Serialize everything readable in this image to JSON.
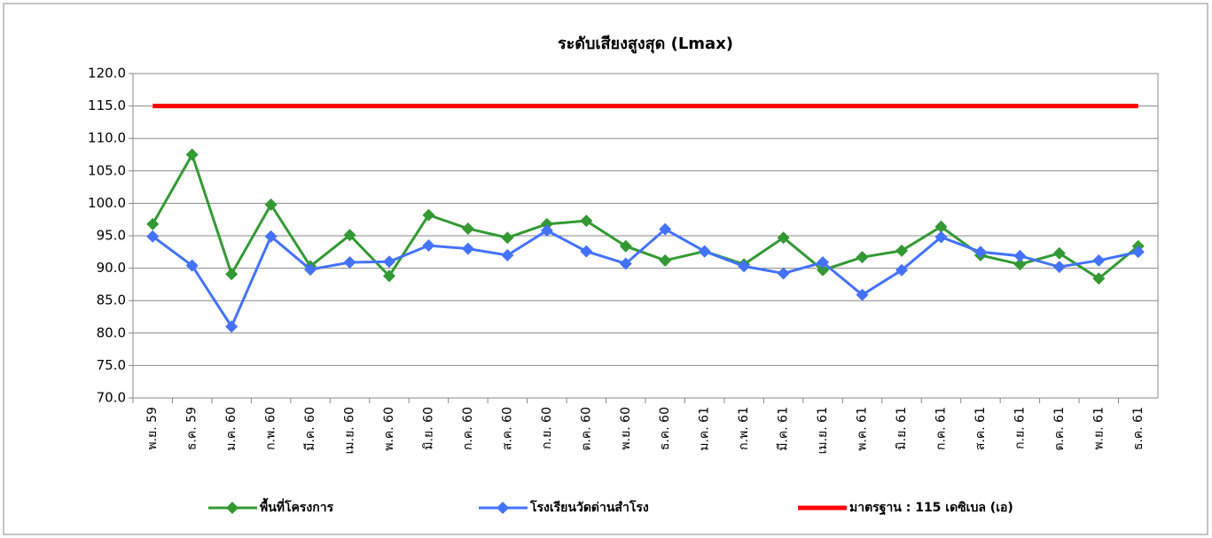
{
  "chart_data": {
    "type": "line",
    "title": "ระดับเสียงสูงสุด (Lmax)",
    "categories": [
      "พ.ย. 59",
      "ธ.ค. 59",
      "ม.ค. 60",
      "ก.พ. 60",
      "มี.ค. 60",
      "เม.ย. 60",
      "พ.ค. 60",
      "มิ.ย. 60",
      "ก.ค. 60",
      "ส.ค. 60",
      "ก.ย. 60",
      "ต.ค. 60",
      "พ.ย. 60",
      "ธ.ค. 60",
      "ม.ค. 61",
      "ก.พ. 61",
      "มี.ค. 61",
      "เม.ย. 61",
      "พ.ค. 61",
      "มิ.ย. 61",
      "ก.ค. 61",
      "ส.ค. 61",
      "ก.ย. 61",
      "ต.ค. 61",
      "พ.ย. 61",
      "ธ.ค. 61"
    ],
    "series": [
      {
        "name": "พื้นที่โครงการ",
        "color": "#339933",
        "marker": "diamond",
        "values": [
          96.8,
          107.5,
          89.1,
          99.8,
          90.3,
          95.1,
          88.8,
          98.2,
          96.1,
          94.7,
          96.8,
          97.3,
          93.4,
          91.2,
          92.6,
          90.6,
          94.7,
          89.7,
          91.7,
          92.7,
          96.4,
          92.0,
          90.6,
          92.3,
          88.4,
          93.4
        ]
      },
      {
        "name": "โรงเรียนวัดด่านสำโรง",
        "color": "#4472ff",
        "marker": "diamond",
        "values": [
          94.9,
          90.4,
          81.0,
          94.9,
          89.8,
          90.9,
          91.0,
          93.5,
          93.0,
          92.0,
          95.8,
          92.6,
          90.7,
          96.0,
          92.6,
          90.3,
          89.2,
          90.9,
          85.9,
          89.7,
          94.8,
          92.5,
          91.9,
          90.2,
          91.2,
          92.5
        ]
      },
      {
        "name": "มาตรฐาน : 115 เดซิเบล (เอ)",
        "color": "#ff0000",
        "values": [
          115,
          115,
          115,
          115,
          115,
          115,
          115,
          115,
          115,
          115,
          115,
          115,
          115,
          115,
          115,
          115,
          115,
          115,
          115,
          115,
          115,
          115,
          115,
          115,
          115,
          115
        ]
      }
    ],
    "ylim": [
      70,
      120
    ],
    "yticks": [
      {
        "value": 70,
        "label": "70.0"
      },
      {
        "value": 75,
        "label": "75.0"
      },
      {
        "value": 80,
        "label": "80.0"
      },
      {
        "value": 85,
        "label": "85.0"
      },
      {
        "value": 90,
        "label": "90.0"
      },
      {
        "value": 95,
        "label": "95.0"
      },
      {
        "value": 100,
        "label": "100.0"
      },
      {
        "value": 105,
        "label": "105.0"
      },
      {
        "value": 110,
        "label": "110.0"
      },
      {
        "value": 115,
        "label": "115.0"
      },
      {
        "value": 120,
        "label": "120.0"
      }
    ],
    "grid": true,
    "legend": "bottom"
  }
}
